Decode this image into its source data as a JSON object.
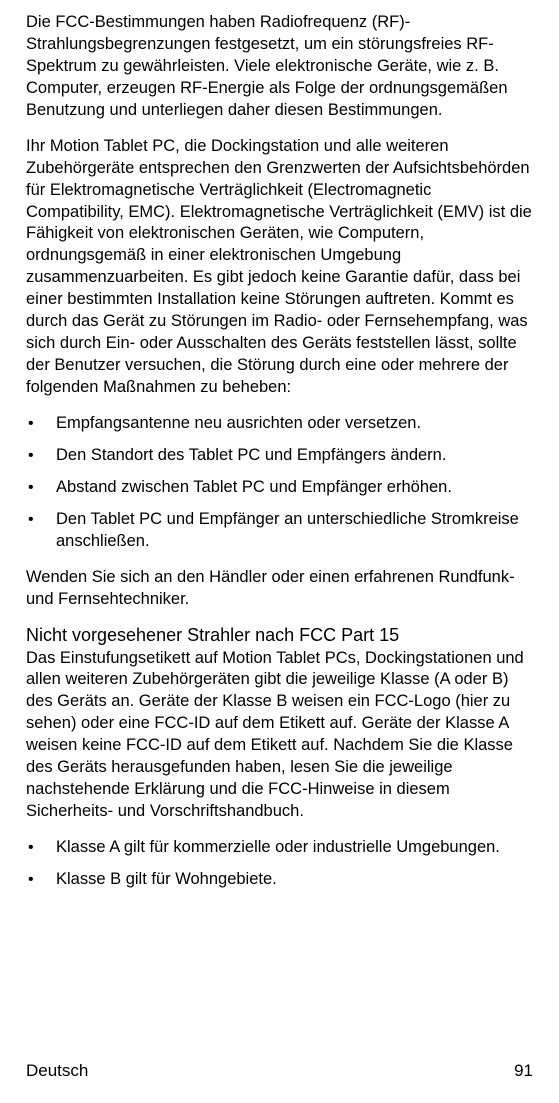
{
  "paragraphs": {
    "p1": "Die FCC-Bestimmungen haben Radiofrequenz (RF)-Strahlungsbegrenzungen festgesetzt, um ein störungsfreies RF-Spektrum zu gewährleisten. Viele elektronische Geräte, wie z. B. Computer, erzeugen RF-Energie als Folge der ordnungsgemäßen Benutzung und unterliegen daher diesen Bestimmungen.",
    "p2": "Ihr Motion Tablet PC, die Dockingstation und alle weiteren Zubehörgeräte entsprechen den Grenzwerten der Aufsichtsbehörden für Elektromagnetische Verträglichkeit (Electromagnetic Compatibility, EMC). Elektromagnetische Verträglichkeit (EMV) ist die Fähigkeit von elektronischen Geräten, wie Computern, ordnungsgemäß in einer elektronischen Umgebung zusammenzuarbeiten. Es gibt jedoch keine Garantie dafür, dass bei einer bestimmten Installation keine Störungen auftreten. Kommt es durch das Gerät zu Störungen im Radio- oder Fernsehempfang, was sich durch Ein- oder Ausschalten des Geräts feststellen lässt, sollte der Benutzer versuchen, die Störung durch eine oder mehrere der folgenden Maßnahmen zu beheben:",
    "p3": "Wenden Sie sich an den Händler oder einen erfahrenen Rundfunk- und Fernsehtechniker.",
    "p4": "Das Einstufungsetikett auf Motion Tablet PCs, Dockingstationen und allen weiteren Zubehörgeräten gibt die jeweilige Klasse (A oder B) des Geräts an. Geräte der Klasse B weisen ein FCC-Logo (hier zu sehen) oder eine FCC-ID auf dem Etikett auf. Geräte der Klasse A weisen keine FCC-ID auf dem Etikett auf. Nachdem Sie die Klasse des Geräts herausgefunden haben, lesen Sie die jeweilige nachstehende Erklärung und die FCC-Hinweise in diesem Sicherheits- und Vorschriftshandbuch."
  },
  "list1": [
    "Empfangsantenne neu ausrichten oder versetzen.",
    "Den Standort des Tablet PC und Empfängers ändern.",
    "Abstand zwischen Tablet PC und Empfänger erhöhen.",
    "Den Tablet PC und Empfänger an unterschiedliche Stromkreise anschließen."
  ],
  "heading": "Nicht vorgesehener Strahler nach FCC Part 15",
  "list2": [
    "Klasse A gilt für kommerzielle oder industrielle Umgebungen.",
    "Klasse B gilt für Wohngebiete."
  ],
  "footer": {
    "language": "Deutsch",
    "page_number": "91"
  }
}
